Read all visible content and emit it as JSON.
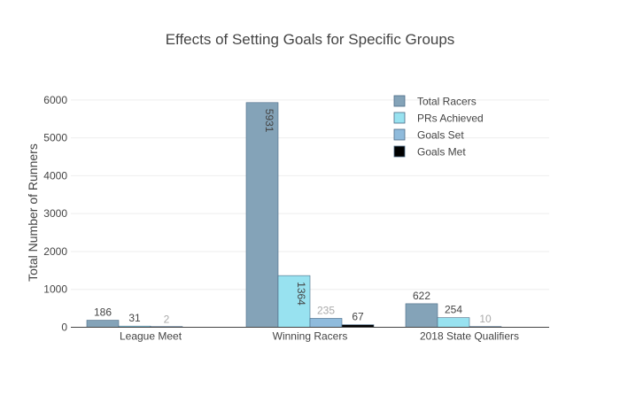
{
  "chart_data": {
    "type": "bar",
    "title": "Effects of Setting Goals for Specific Groups",
    "xlabel": "",
    "ylabel": "Total Number of Runners",
    "categories": [
      "League Meet",
      "Winning Racers",
      "2018 State Qualifiers"
    ],
    "ylim": [
      0,
      6300
    ],
    "yticks": [
      0,
      1000,
      2000,
      3000,
      4000,
      5000,
      6000
    ],
    "grid": true,
    "legend_position": "top-right",
    "series": [
      {
        "name": "Total Racers",
        "color": "#84a3b8",
        "values": [
          186,
          5931,
          622
        ],
        "labels": [
          "186",
          "5931",
          "622"
        ],
        "label_colors": [
          "#444444",
          "#444444",
          "#444444"
        ]
      },
      {
        "name": "PRs Achieved",
        "color": "#98e2f0",
        "values": [
          31,
          1364,
          254
        ],
        "labels": [
          "31",
          "1364",
          "254"
        ],
        "label_colors": [
          "#444444",
          "#444444",
          "#444444"
        ]
      },
      {
        "name": "Goals Set",
        "color": "#8fbbdc",
        "values": [
          2,
          235,
          10
        ],
        "labels": [
          "2",
          "235",
          "10"
        ],
        "label_colors": [
          "#aaaaaa",
          "#aaaaaa",
          "#aaaaaa"
        ]
      },
      {
        "name": "Goals Met",
        "color": "#000000",
        "values": [
          0,
          67,
          0
        ],
        "labels": [
          "",
          "67",
          ""
        ],
        "label_colors": [
          "#444444",
          "#444444",
          "#444444"
        ]
      }
    ]
  }
}
